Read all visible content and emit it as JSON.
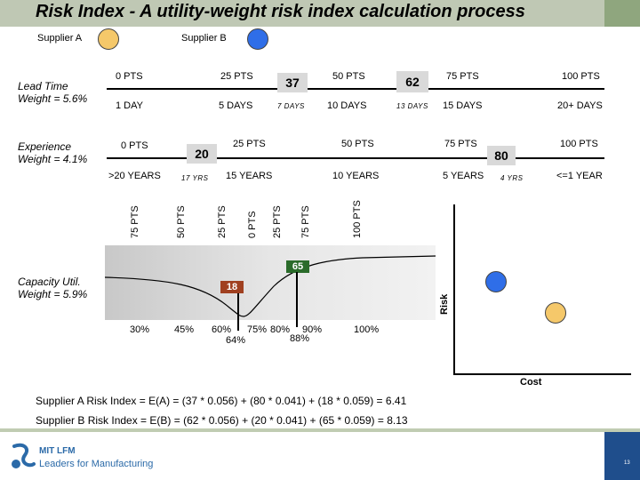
{
  "title": "Risk Index - A utility-weight risk index calculation process",
  "suppliers": {
    "a_label": "Supplier A",
    "b_label": "Supplier B",
    "a_color": "#f5c86a",
    "b_color": "#2f6ee8"
  },
  "lead_time": {
    "label_line1": "Lead Time",
    "label_line2": "Weight = 5.6%",
    "pts": [
      "0 PTS",
      "25 PTS",
      "50 PTS",
      "75 PTS",
      "100 PTS"
    ],
    "days": [
      "1 DAY",
      "5 DAYS",
      "7 DAYS",
      "10 DAYS",
      "13 DAYS",
      "15 DAYS",
      "20+ DAYS"
    ],
    "badge_a": "37",
    "badge_b": "62"
  },
  "experience": {
    "label_line1": "Experience",
    "label_line2": "Weight = 4.1%",
    "pts": [
      "0 PTS",
      "25 PTS",
      "50 PTS",
      "75 PTS",
      "100 PTS"
    ],
    "years": [
      ">20 YEARS",
      "17 YRS",
      "15 YEARS",
      "10 YEARS",
      "5 YEARS",
      "4 YRS",
      "<=1 YEAR"
    ],
    "badge_b": "20",
    "badge_a": "80"
  },
  "capacity": {
    "label_line1": "Capacity Util.",
    "label_line2": "Weight = 5.9%",
    "pts_vertical": [
      "75 PTS",
      "50 PTS",
      "25 PTS",
      "0 PTS",
      "25 PTS",
      "75 PTS",
      "100 PTS"
    ],
    "pcts": [
      "30%",
      "45%",
      "60%",
      "64%",
      "75%",
      "80%",
      "88%",
      "90%",
      "100%"
    ],
    "badge_b": "65",
    "badge_a": "18"
  },
  "risk_plot": {
    "y_label": "Risk",
    "x_label": "Cost"
  },
  "formulas": {
    "a": "Supplier A Risk Index = E(A) = (37 * 0.056) + (80 * 0.041) + (18 * 0.059) = 6.41",
    "b": "Supplier B Risk Index = E(B) = (62 * 0.056) + (20 * 0.041) + (65 * 0.059) = 8.13"
  },
  "footer": {
    "logo_line1": "MIT LFM",
    "logo_line2": "Leaders for Manufacturing",
    "page_number": "13",
    "logo_icon": "lfm-logo-icon"
  }
}
